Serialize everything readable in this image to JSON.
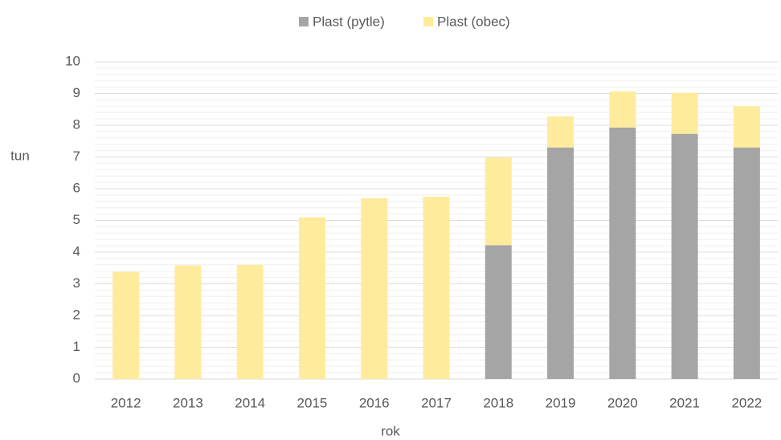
{
  "chart_data": {
    "type": "stacked_bar",
    "categories": [
      "2012",
      "2013",
      "2014",
      "2015",
      "2016",
      "2017",
      "2018",
      "2019",
      "2020",
      "2021",
      "2022"
    ],
    "series": [
      {
        "name": "Plast (pytle)",
        "color": "#a5a5a5",
        "values": [
          0,
          0,
          0,
          0,
          0,
          0,
          4.22,
          7.3,
          7.93,
          7.73,
          7.3
        ]
      },
      {
        "name": "Plast (obec)",
        "color": "#ffeb9c",
        "values": [
          3.38,
          3.58,
          3.6,
          5.1,
          5.7,
          5.75,
          2.76,
          0.98,
          1.14,
          1.29,
          1.3
        ]
      }
    ],
    "y_label": "tun",
    "x_label": "rok",
    "ylim": [
      0,
      10
    ],
    "yticks": [
      0,
      1,
      2,
      3,
      4,
      5,
      6,
      7,
      8,
      9,
      10
    ],
    "grid": true,
    "legend": "top"
  }
}
